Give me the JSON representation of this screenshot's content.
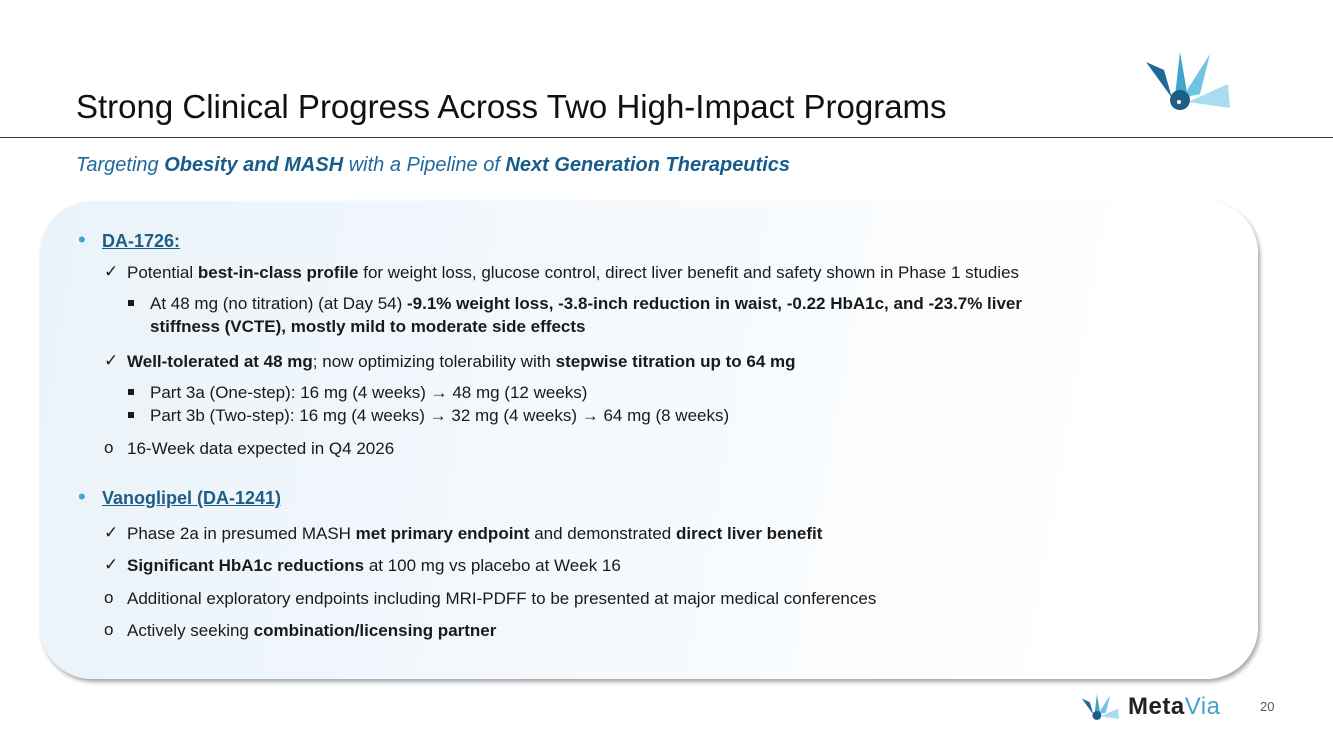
{
  "title": "Strong Clinical Progress Across Two High-Impact Programs",
  "subtitle": {
    "p1": "Targeting ",
    "b1": "Obesity and MASH",
    "p2": " with a Pipeline of ",
    "b2": "Next Generation Therapeutics"
  },
  "section1": {
    "heading": "DA-1726:",
    "c1": {
      "p1": "Potential ",
      "b1": "best-in-class profile",
      "p2": " for weight loss, glucose control, direct liver benefit and safety shown in Phase 1 studies"
    },
    "s1": {
      "p1": "At 48 mg (no titration) (at Day 54) ",
      "b1": "-9.1% weight loss, -3.8-inch reduction in waist, -0.22 HbA1c, and -23.7% liver",
      "b2": "stiffness (VCTE), mostly mild to moderate side effects"
    },
    "c2": {
      "b1": "Well-tolerated at 48 mg",
      "p1": "; now optimizing tolerability with ",
      "b2": "stepwise titration up to 64 mg"
    },
    "s2": "Part 3a (One-step): 16 mg (4 weeks) → 48 mg (12 weeks)",
    "s3": "Part 3b (Two-step): 16 mg (4 weeks) → 32 mg (4 weeks) → 64 mg (8 weeks)",
    "o1": "16-Week data expected in Q4 2026"
  },
  "section2": {
    "heading": "Vanoglipel (DA-1241)",
    "c1": {
      "p1": "Phase 2a in presumed MASH ",
      "b1": "met primary endpoint",
      "p2": " and demonstrated ",
      "b2": "direct liver benefit"
    },
    "c2": {
      "b1": "Significant HbA1c reductions",
      "p1": " at 100 mg vs placebo at Week 16"
    },
    "o1": "Additional exploratory endpoints including MRI-PDFF to be presented at major medical conferences",
    "o2": {
      "p1": "Actively seeking ",
      "b1": "combination/licensing partner"
    }
  },
  "footer": {
    "brand_a": "Meta",
    "brand_b": "Via",
    "page": "20"
  },
  "marks": {
    "check": "✓",
    "circle": "o",
    "dot": "•"
  },
  "colors": {
    "accent": "#3fa5cc",
    "heading": "#1d5d86",
    "subtitle": "#1d6a9a"
  },
  "icons": [
    "metavia-logo-icon"
  ]
}
